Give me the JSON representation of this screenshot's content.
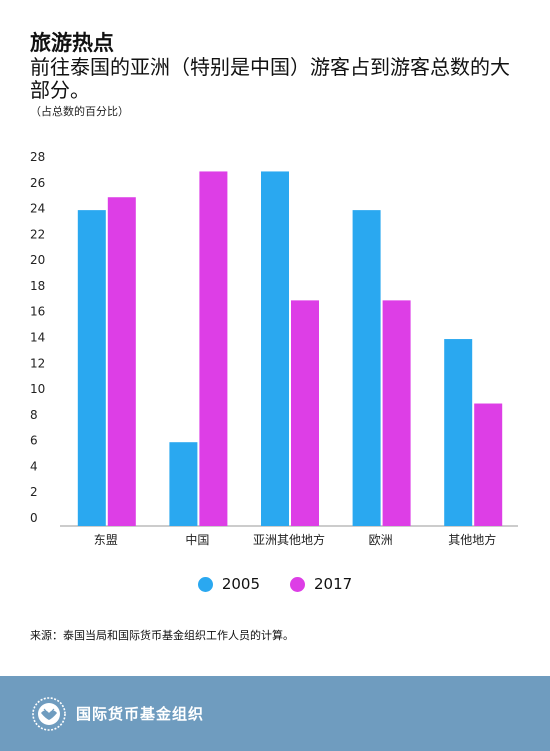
{
  "header": {
    "title": "旅游热点",
    "subtitle": "前往泰国的亚洲（特别是中国）游客占到游客总数的大部分。",
    "unit": "（占总数的百分比）"
  },
  "chart_data": {
    "type": "bar",
    "title": "旅游热点",
    "subtitle": "前往泰国的亚洲（特别是中国）游客占到游客总数的大部分。",
    "ylabel": "（占总数的百分比）",
    "categories": [
      "东盟",
      "中国",
      "亚洲其他地方",
      "欧洲",
      "其他地方"
    ],
    "series": [
      {
        "name": "2005",
        "color": "#2aa8f0",
        "values": [
          24.5,
          6.5,
          27.5,
          24.5,
          14.5
        ]
      },
      {
        "name": "2017",
        "color": "#dd3ee6",
        "values": [
          25.5,
          27.5,
          17.5,
          17.5,
          9.5
        ]
      }
    ],
    "ylim": [
      0,
      28
    ],
    "yticks": [
      0,
      2,
      4,
      6,
      8,
      10,
      12,
      14,
      16,
      18,
      20,
      22,
      24,
      26,
      28
    ],
    "grid": false,
    "legend": "bottom-center"
  },
  "source": "来源：泰国当局和国际货币基金组织工作人员的计算。",
  "footer": {
    "org_name": "国际货币基金组织",
    "logo_icon": "imf-seal-icon"
  }
}
